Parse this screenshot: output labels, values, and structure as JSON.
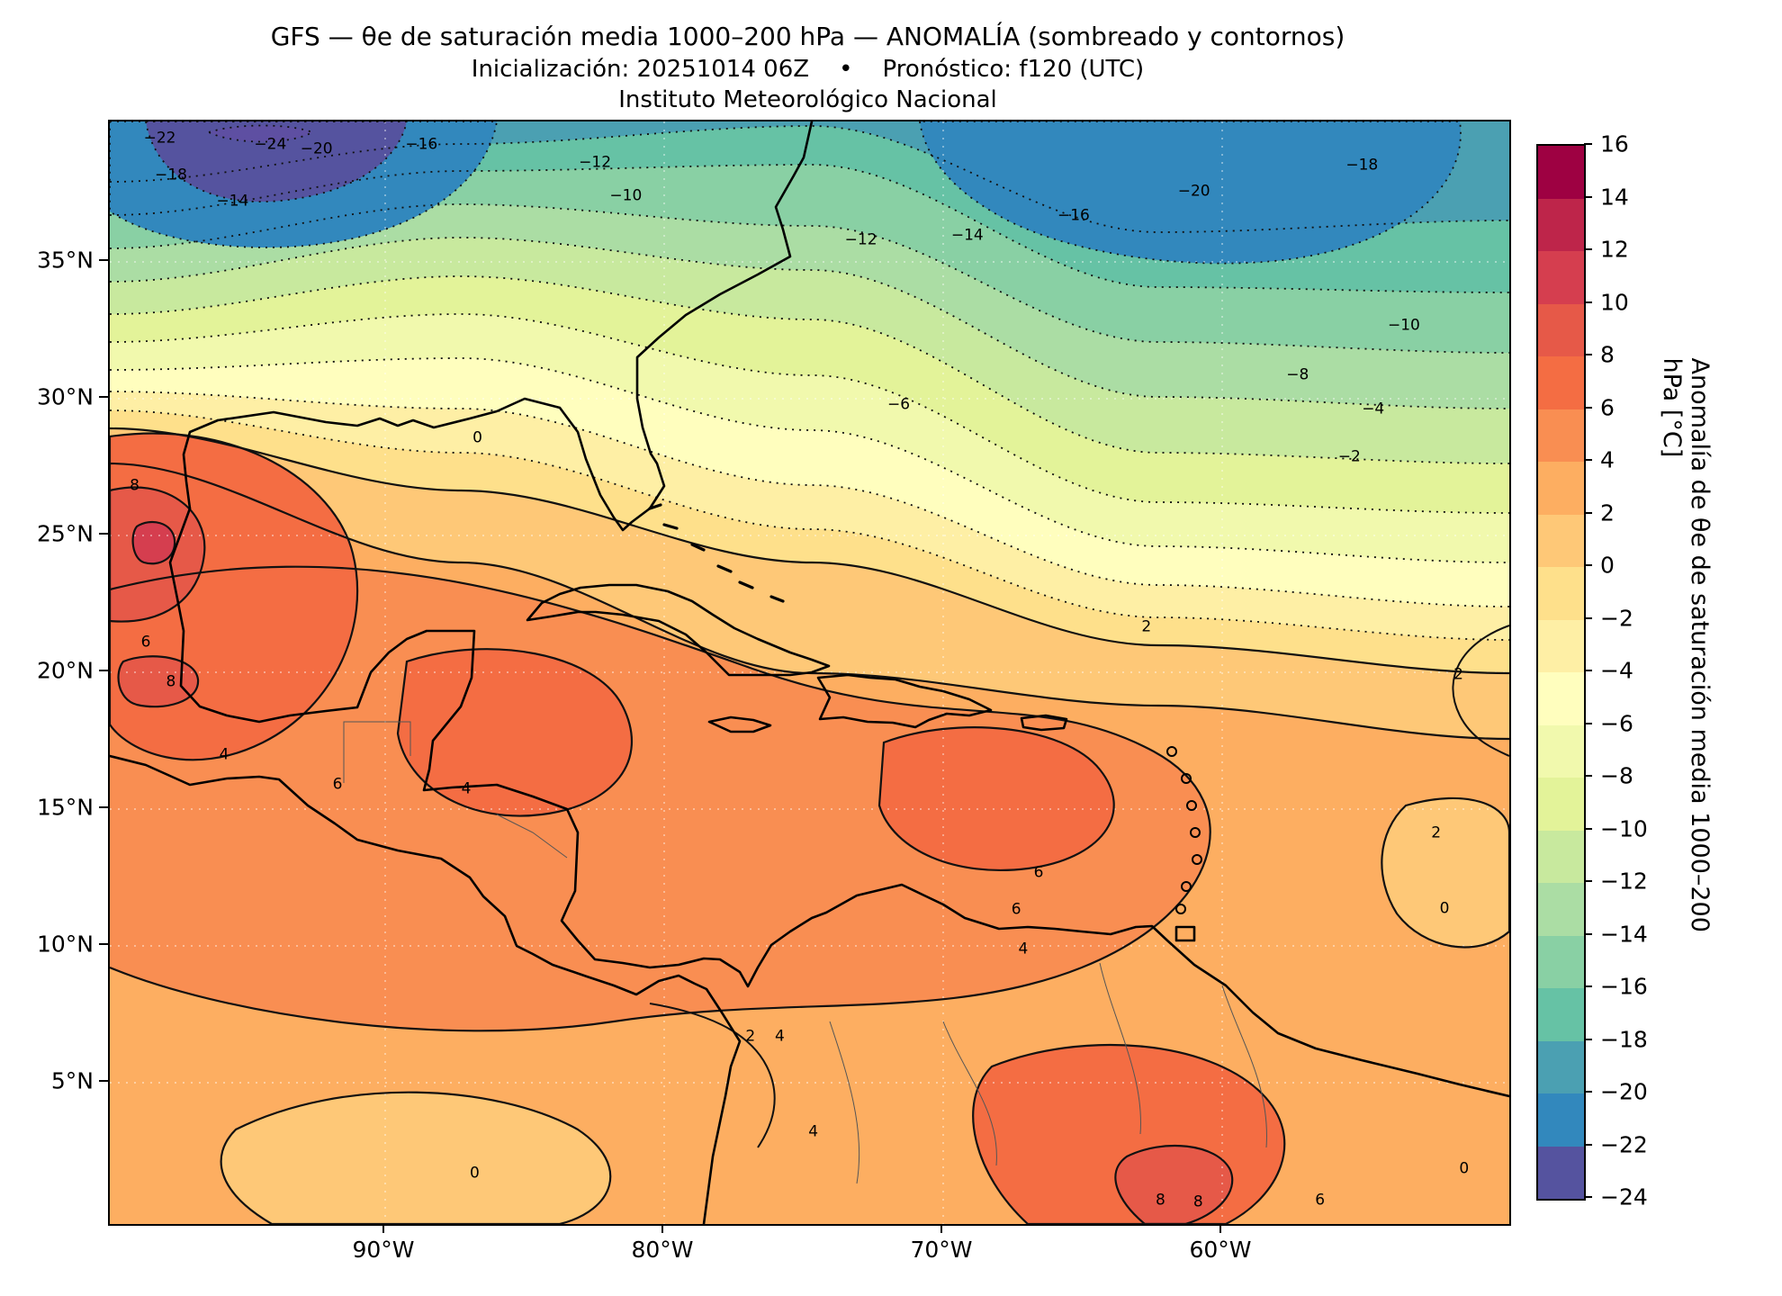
{
  "header": {
    "title": "GFS — θe de saturación media 1000–200 hPa — ANOMALÍA (sombreado y contornos)",
    "subtitle": "Inicialización: 20251014 06Z    •    Pronóstico: f120 (UTC)",
    "institution": "Instituto Meteorológico Nacional"
  },
  "chart_data": {
    "type": "heatmap",
    "model": "GFS",
    "variable": "Anomalía de θe de saturación media 1000–200 hPa",
    "units": "°C",
    "initialization": "20251014 06Z",
    "forecast_hour": "f120 (UTC)",
    "x_tick_labels": [
      "90°W",
      "80°W",
      "70°W",
      "60°W"
    ],
    "y_tick_labels": [
      "35°N",
      "30°N",
      "25°N",
      "20°N",
      "15°N",
      "10°N",
      "5°N"
    ],
    "contour_levels": [
      -24,
      -22,
      -20,
      -18,
      -16,
      -14,
      -12,
      -10,
      -8,
      -6,
      -4,
      -2,
      0,
      2,
      4,
      6,
      8,
      10,
      12,
      14,
      16
    ],
    "level_step": 2,
    "contour_style": {
      "negative": "dotted",
      "non_negative": "solid"
    },
    "colorbar": {
      "label": "Anomalía de θe de saturación media 1000–200 hPa [°C]",
      "ticks": [
        "16",
        "14",
        "12",
        "10",
        "8",
        "6",
        "4",
        "2",
        "0",
        "−2",
        "−4",
        "−6",
        "−8",
        "−10",
        "−12",
        "−14",
        "−16",
        "−18",
        "−20",
        "−22",
        "−24"
      ],
      "band_colors": [
        "#9e0142",
        "#be254a",
        "#d53e4f",
        "#e65948",
        "#f46d43",
        "#f98e52",
        "#fdae61",
        "#fec877",
        "#fee08b",
        "#feefa5",
        "#fffebe",
        "#f1f9ad",
        "#e3f399",
        "#c8e99e",
        "#abdda4",
        "#89d0a4",
        "#66c2a5",
        "#4ba0b2",
        "#3288bd",
        "#55539f"
      ]
    },
    "contour_labels": [
      "−22",
      "−24",
      "−20",
      "−16",
      "−18",
      "−14",
      "−12",
      "−10",
      "−12",
      "−14",
      "−16",
      "−20",
      "−18",
      "−10",
      "−8",
      "−6",
      "−4",
      "−2",
      "0",
      "2",
      "2",
      "8",
      "6",
      "8",
      "4",
      "6",
      "4",
      "6",
      "6",
      "4",
      "2",
      "4",
      "4",
      "0",
      "2",
      "0",
      "8",
      "8",
      "6",
      "0"
    ],
    "estimated_values": {
      "lons": [
        "90°W",
        "80°W",
        "70°W",
        "60°W"
      ],
      "35N": [
        -8,
        -10,
        -13,
        -17
      ],
      "30N": [
        0,
        -2,
        -4,
        -7
      ],
      "25N": [
        5,
        3,
        3,
        2
      ],
      "20N": [
        6,
        5,
        4,
        3
      ],
      "15N": [
        5,
        4,
        5,
        4
      ],
      "10N": [
        4,
        4,
        5,
        3
      ],
      "5N": [
        2,
        3,
        4,
        4
      ]
    }
  }
}
